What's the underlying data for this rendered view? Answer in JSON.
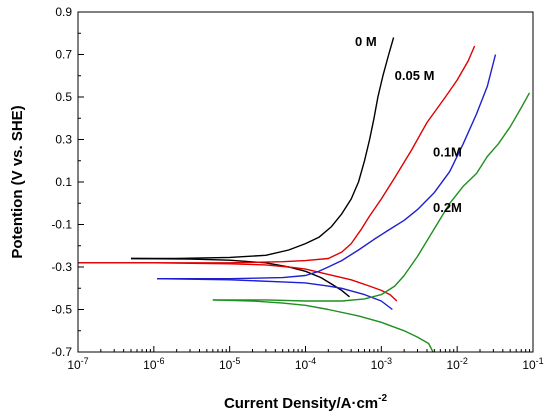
{
  "chart_data": {
    "type": "line",
    "title": "",
    "xlabel": "Current Density/A·cm",
    "xlabel_superscript": "-2",
    "ylabel": "Potention (V vs. SHE)",
    "x_scale": "log",
    "xlim": [
      1e-07,
      0.1
    ],
    "ylim": [
      -0.7,
      0.9
    ],
    "x_ticks": [
      {
        "value": 1e-07,
        "base": "10",
        "exp": "-7"
      },
      {
        "value": 1e-06,
        "base": "10",
        "exp": "-6"
      },
      {
        "value": 1e-05,
        "base": "10",
        "exp": "-5"
      },
      {
        "value": 0.0001,
        "base": "10",
        "exp": "-4"
      },
      {
        "value": 0.001,
        "base": "10",
        "exp": "-3"
      },
      {
        "value": 0.01,
        "base": "10",
        "exp": "-2"
      },
      {
        "value": 0.1,
        "base": "10",
        "exp": "-1"
      }
    ],
    "y_ticks": [
      "-0.7",
      "-0.5",
      "-0.3",
      "-0.1",
      "0.1",
      "0.3",
      "0.5",
      "0.7",
      "0.9"
    ],
    "grid": false,
    "legend": "none",
    "series": [
      {
        "name": "0 M",
        "color": "#000000",
        "label_anchor": {
          "x": 0.00045,
          "y": 0.74
        },
        "anodic": [
          [
            5e-07,
            -0.26
          ],
          [
            2e-06,
            -0.26
          ],
          [
            1e-05,
            -0.255
          ],
          [
            3e-05,
            -0.245
          ],
          [
            6e-05,
            -0.22
          ],
          [
            0.0001,
            -0.19
          ],
          [
            0.00015,
            -0.16
          ],
          [
            0.00022,
            -0.11
          ],
          [
            0.0003,
            -0.05
          ],
          [
            0.0004,
            0.02
          ],
          [
            0.0005,
            0.1
          ],
          [
            0.0006,
            0.2
          ],
          [
            0.0007,
            0.3
          ],
          [
            0.0008,
            0.4
          ],
          [
            0.0009,
            0.5
          ],
          [
            0.00105,
            0.6
          ],
          [
            0.00125,
            0.7
          ],
          [
            0.00145,
            0.78
          ]
        ],
        "cathodic": [
          [
            5e-07,
            -0.26
          ],
          [
            3e-06,
            -0.263
          ],
          [
            1e-05,
            -0.268
          ],
          [
            3e-05,
            -0.28
          ],
          [
            6e-05,
            -0.3
          ],
          [
            0.0001,
            -0.32
          ],
          [
            0.00016,
            -0.35
          ],
          [
            0.00022,
            -0.38
          ],
          [
            0.0003,
            -0.41
          ],
          [
            0.00038,
            -0.44
          ]
        ]
      },
      {
        "name": "0.05 M",
        "color": "#e00000",
        "label_anchor": {
          "x": 0.0015,
          "y": 0.58
        },
        "anodic": [
          [
            1e-07,
            -0.28
          ],
          [
            1e-06,
            -0.28
          ],
          [
            1e-05,
            -0.28
          ],
          [
            5e-05,
            -0.275
          ],
          [
            0.0001,
            -0.27
          ],
          [
            0.0002,
            -0.26
          ],
          [
            0.0003,
            -0.23
          ],
          [
            0.0004,
            -0.19
          ],
          [
            0.00055,
            -0.12
          ],
          [
            0.0007,
            -0.06
          ],
          [
            0.001,
            0.02
          ],
          [
            0.0015,
            0.12
          ],
          [
            0.0025,
            0.25
          ],
          [
            0.004,
            0.38
          ],
          [
            0.007,
            0.5
          ],
          [
            0.01,
            0.58
          ],
          [
            0.014,
            0.67
          ],
          [
            0.017,
            0.74
          ]
        ],
        "cathodic": [
          [
            1e-07,
            -0.28
          ],
          [
            1e-06,
            -0.28
          ],
          [
            1e-05,
            -0.285
          ],
          [
            3e-05,
            -0.29
          ],
          [
            6e-05,
            -0.3
          ],
          [
            0.0001,
            -0.31
          ],
          [
            0.0002,
            -0.335
          ],
          [
            0.0004,
            -0.36
          ],
          [
            0.0007,
            -0.39
          ],
          [
            0.001,
            -0.41
          ],
          [
            0.0013,
            -0.43
          ],
          [
            0.0016,
            -0.46
          ]
        ]
      },
      {
        "name": "0.1M",
        "color": "#1f1fd0",
        "label_anchor": {
          "x": 0.0048,
          "y": 0.22
        },
        "anodic": [
          [
            1.1e-06,
            -0.355
          ],
          [
            1e-05,
            -0.355
          ],
          [
            5e-05,
            -0.35
          ],
          [
            0.0001,
            -0.34
          ],
          [
            0.00015,
            -0.32
          ],
          [
            0.0002,
            -0.3
          ],
          [
            0.0003,
            -0.27
          ],
          [
            0.0005,
            -0.22
          ],
          [
            0.0008,
            -0.17
          ],
          [
            0.0012,
            -0.13
          ],
          [
            0.002,
            -0.08
          ],
          [
            0.003,
            -0.03
          ],
          [
            0.005,
            0.05
          ],
          [
            0.008,
            0.15
          ],
          [
            0.012,
            0.28
          ],
          [
            0.018,
            0.42
          ],
          [
            0.025,
            0.55
          ],
          [
            0.032,
            0.7
          ]
        ],
        "cathodic": [
          [
            1.1e-06,
            -0.355
          ],
          [
            1e-05,
            -0.36
          ],
          [
            5e-05,
            -0.37
          ],
          [
            0.0001,
            -0.375
          ],
          [
            0.0002,
            -0.39
          ],
          [
            0.0003,
            -0.4
          ],
          [
            0.0006,
            -0.43
          ],
          [
            0.001,
            -0.46
          ],
          [
            0.0014,
            -0.5
          ]
        ]
      },
      {
        "name": "0.2M",
        "color": "#1f8f1f",
        "label_anchor": {
          "x": 0.0048,
          "y": -0.04
        },
        "anodic": [
          [
            6e-06,
            -0.455
          ],
          [
            3e-05,
            -0.455
          ],
          [
            0.0001,
            -0.46
          ],
          [
            0.0003,
            -0.46
          ],
          [
            0.0006,
            -0.45
          ],
          [
            0.001,
            -0.43
          ],
          [
            0.0015,
            -0.39
          ],
          [
            0.002,
            -0.34
          ],
          [
            0.003,
            -0.25
          ],
          [
            0.005,
            -0.12
          ],
          [
            0.008,
            0.0
          ],
          [
            0.012,
            0.08
          ],
          [
            0.018,
            0.14
          ],
          [
            0.025,
            0.22
          ],
          [
            0.035,
            0.28
          ],
          [
            0.05,
            0.36
          ],
          [
            0.07,
            0.45
          ],
          [
            0.09,
            0.52
          ]
        ],
        "cathodic": [
          [
            6e-06,
            -0.455
          ],
          [
            2e-05,
            -0.46
          ],
          [
            5e-05,
            -0.47
          ],
          [
            0.0001,
            -0.48
          ],
          [
            0.0002,
            -0.5
          ],
          [
            0.0005,
            -0.53
          ],
          [
            0.001,
            -0.56
          ],
          [
            0.002,
            -0.6
          ],
          [
            0.003,
            -0.63
          ],
          [
            0.0042,
            -0.66
          ],
          [
            0.0048,
            -0.7
          ]
        ]
      }
    ]
  }
}
